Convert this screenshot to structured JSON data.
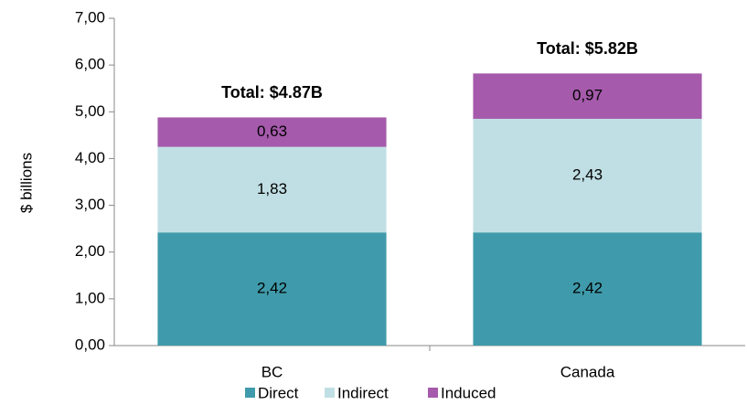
{
  "chart_data": {
    "type": "stacked_bar",
    "categories": [
      "BC",
      "Canada"
    ],
    "series": [
      {
        "name": "Direct",
        "color": "#3f9bab",
        "values": [
          2.42,
          2.42
        ],
        "value_labels": [
          "2,42",
          "2,42"
        ]
      },
      {
        "name": "Indirect",
        "color": "#c0dfe4",
        "values": [
          1.83,
          2.43
        ],
        "value_labels": [
          "1,83",
          "2,43"
        ]
      },
      {
        "name": "Induced",
        "color": "#a55aab",
        "values": [
          0.63,
          0.97
        ],
        "value_labels": [
          "0,63",
          "0,97"
        ]
      }
    ],
    "annotations": [
      "Total: $4.87B",
      "Total: $5.82B"
    ],
    "ylabel": "$ billions",
    "ylim": [
      0,
      7
    ],
    "yticks": [
      {
        "value": 0,
        "label": "0,00"
      },
      {
        "value": 1,
        "label": "1,00"
      },
      {
        "value": 2,
        "label": "2,00"
      },
      {
        "value": 3,
        "label": "3,00"
      },
      {
        "value": 4,
        "label": "4,00"
      },
      {
        "value": 5,
        "label": "5,00"
      },
      {
        "value": 6,
        "label": "6,00"
      },
      {
        "value": 7,
        "label": "7,00"
      }
    ],
    "legend": "bottom"
  }
}
